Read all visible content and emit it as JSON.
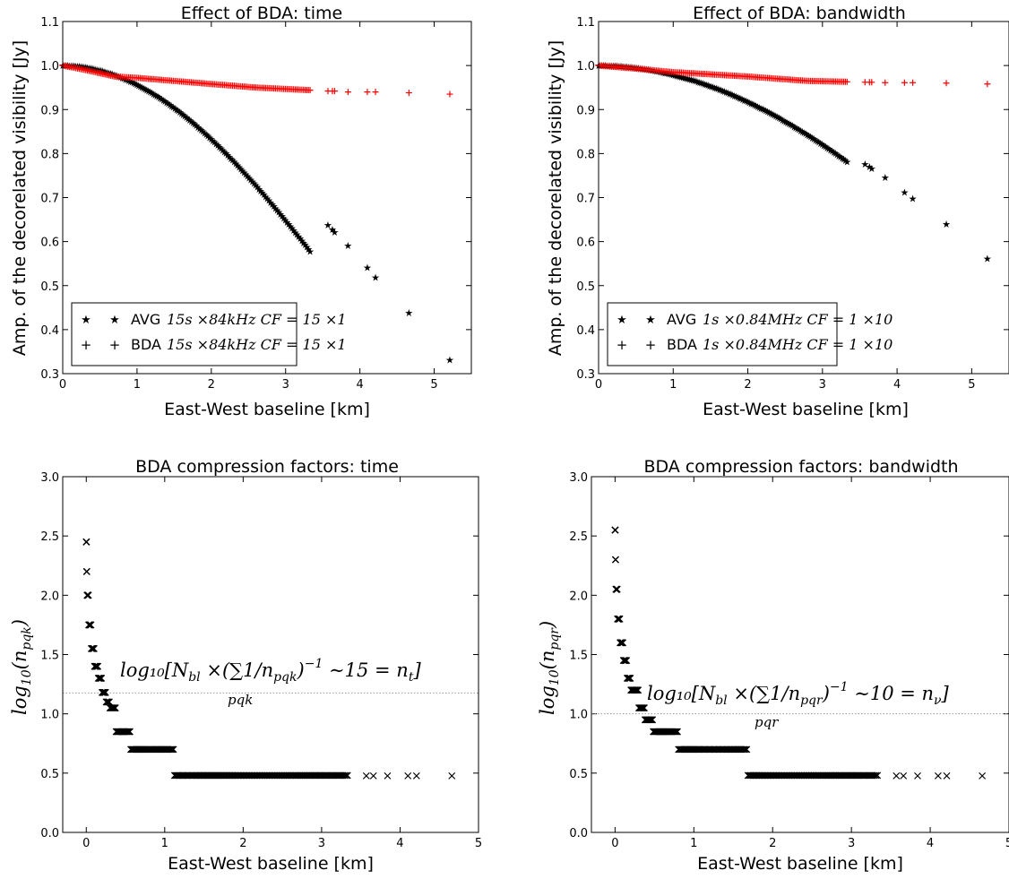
{
  "figure": {
    "panels": [
      {
        "id": "time",
        "title": "Effect of BDA: time",
        "xlabel": "East-West baseline [km]",
        "ylabel": "Amp. of the decorelated visibility [Jy]",
        "xticks": [
          "0",
          "1",
          "2",
          "3",
          "4",
          "5"
        ],
        "yticks": [
          "0.3",
          "0.4",
          "0.5",
          "0.6",
          "0.7",
          "0.8",
          "0.9",
          "1.0",
          "1.1"
        ],
        "legend": [
          {
            "label": "AVG",
            "math": "15s ×84kHz CF = 15 ×1",
            "marker": "star"
          },
          {
            "label": "BDA",
            "math": "15s ×84kHz CF = 15 ×1",
            "marker": "plus"
          }
        ]
      },
      {
        "id": "bandwidth",
        "title": "Effect of BDA: bandwidth",
        "xlabel": "East-West baseline [km]",
        "ylabel": "Amp. of the decorelated visibility [Jy]",
        "xticks": [
          "0",
          "1",
          "2",
          "3",
          "4",
          "5"
        ],
        "yticks": [
          "0.3",
          "0.4",
          "0.5",
          "0.6",
          "0.7",
          "0.8",
          "0.9",
          "1.0",
          "1.1"
        ],
        "legend": [
          {
            "label": "AVG",
            "math": "1s ×0.84MHz CF = 1 ×10",
            "marker": "star"
          },
          {
            "label": "BDA",
            "math": "1s ×0.84MHz CF = 1 ×10",
            "marker": "plus"
          }
        ]
      },
      {
        "id": "cf-time",
        "title": "BDA  compression factors: time",
        "xlabel": "East-West baseline [km]",
        "ylabel_base": "log",
        "ylabel_sub": "10",
        "ylabel_arg": "(n",
        "ylabel_arg_sub": "pqk",
        "ylabel_close": ")",
        "xticks": [
          "0",
          "1",
          "2",
          "3",
          "4",
          "5"
        ],
        "yticks": [
          "0.0",
          "0.5",
          "1.0",
          "1.5",
          "2.0",
          "2.5",
          "3.0"
        ],
        "annotation_main": "log₁₀[N",
        "annotation_parts": [
          "bl",
          " ×(∑1/n",
          "pqk",
          ")",
          "−1",
          " ∼15 = n",
          "t",
          "]"
        ],
        "annotation_under": "pqk"
      },
      {
        "id": "cf-bandwidth",
        "title": "BDA  compression factors: bandwidth",
        "xlabel": "East-West baseline [km]",
        "ylabel_base": "log",
        "ylabel_sub": "10",
        "ylabel_arg": "(n",
        "ylabel_arg_sub": "pqr",
        "ylabel_close": ")",
        "xticks": [
          "0",
          "1",
          "2",
          "3",
          "4",
          "5"
        ],
        "yticks": [
          "0.0",
          "0.5",
          "1.0",
          "1.5",
          "2.0",
          "2.5",
          "3.0"
        ],
        "annotation_main": "log₁₀[N",
        "annotation_parts": [
          "bl",
          " ×(∑1/n",
          "pqr",
          ")",
          "−1",
          " ∼10 = n",
          "ν",
          "]"
        ],
        "annotation_under": "pqr"
      }
    ],
    "colors": {
      "avg": "#000000",
      "avg_fill": "#b8b600",
      "bda": "#ff0000",
      "ref_line": "#999999"
    }
  },
  "chart_data": [
    {
      "type": "scatter",
      "title": "Effect of BDA: time",
      "xlabel": "East-West baseline [km]",
      "ylabel": "Amp. of the decorelated visibility [Jy]",
      "xlim": [
        0,
        5.5
      ],
      "ylim": [
        0.3,
        1.1
      ],
      "series": [
        {
          "name": "AVG 15s ×84kHz CF = 15 ×1",
          "marker": "star",
          "dense_curve": {
            "from": 0,
            "to": 3.33,
            "formula": "sinc",
            "k": 0.54
          },
          "points": [
            [
              3.57,
              0.638
            ],
            [
              3.63,
              0.628
            ],
            [
              3.66,
              0.622
            ],
            [
              3.84,
              0.591
            ],
            [
              4.1,
              0.541
            ],
            [
              4.21,
              0.519
            ],
            [
              4.66,
              0.438
            ],
            [
              5.21,
              0.332
            ]
          ]
        },
        {
          "name": "BDA 15s ×84kHz CF = 15 ×1",
          "marker": "plus",
          "dense_curve": {
            "from": 0,
            "to": 3.33,
            "formula": "piecewise",
            "knots": [
              [
                0,
                1.0
              ],
              [
                0.3,
                0.99
              ],
              [
                0.7,
                0.975
              ],
              [
                1.0,
                0.972
              ],
              [
                2.0,
                0.958
              ],
              [
                2.6,
                0.95
              ],
              [
                3.33,
                0.944
              ]
            ]
          },
          "points": [
            [
              3.57,
              0.942
            ],
            [
              3.63,
              0.942
            ],
            [
              3.66,
              0.942
            ],
            [
              3.84,
              0.94
            ],
            [
              4.1,
              0.94
            ],
            [
              4.21,
              0.94
            ],
            [
              4.66,
              0.938
            ],
            [
              5.21,
              0.935
            ]
          ]
        }
      ]
    },
    {
      "type": "scatter",
      "title": "Effect of BDA: bandwidth",
      "xlabel": "East-West baseline [km]",
      "ylabel": "Amp. of the decorelated visibility [Jy]",
      "xlim": [
        0,
        5.5
      ],
      "ylim": [
        0.3,
        1.1
      ],
      "series": [
        {
          "name": "AVG 1s ×0.84MHz CF = 1 ×10",
          "marker": "star",
          "dense_curve": {
            "from": 0,
            "to": 3.33,
            "formula": "sinc",
            "k": 0.374
          },
          "points": [
            [
              3.57,
              0.776
            ],
            [
              3.63,
              0.77
            ],
            [
              3.66,
              0.766
            ],
            [
              3.84,
              0.746
            ],
            [
              4.1,
              0.712
            ],
            [
              4.21,
              0.698
            ],
            [
              4.66,
              0.64
            ],
            [
              5.21,
              0.562
            ]
          ]
        },
        {
          "name": "BDA 1s ×0.84MHz CF = 1 ×10",
          "marker": "plus",
          "dense_curve": {
            "from": 0,
            "to": 3.33,
            "formula": "piecewise",
            "knots": [
              [
                0,
                1.0
              ],
              [
                0.5,
                0.993
              ],
              [
                1.0,
                0.985
              ],
              [
                2.0,
                0.975
              ],
              [
                2.8,
                0.965
              ],
              [
                3.33,
                0.963
              ]
            ]
          },
          "points": [
            [
              3.57,
              0.962
            ],
            [
              3.63,
              0.962
            ],
            [
              3.66,
              0.962
            ],
            [
              3.84,
              0.961
            ],
            [
              4.1,
              0.961
            ],
            [
              4.21,
              0.961
            ],
            [
              4.66,
              0.96
            ],
            [
              5.21,
              0.958
            ]
          ]
        }
      ]
    },
    {
      "type": "scatter",
      "title": "BDA  compression factors: time",
      "xlabel": "East-West baseline [km]",
      "xlim": [
        -0.3,
        5
      ],
      "ylim": [
        0,
        3
      ],
      "reference_line_y": 1.176,
      "series": [
        {
          "marker": "x",
          "dense_curve": {
            "from": 0,
            "to": 3.33,
            "formula": "steps",
            "knots": [
              [
                0.001,
                2.45
              ],
              [
                0.004,
                2.2
              ],
              [
                0.01,
                2.0
              ],
              [
                0.03,
                1.75
              ],
              [
                0.06,
                1.55
              ],
              [
                0.1,
                1.4
              ],
              [
                0.15,
                1.3
              ],
              [
                0.2,
                1.18
              ],
              [
                0.25,
                1.1
              ],
              [
                0.3,
                1.05
              ],
              [
                0.38,
                0.85
              ],
              [
                0.56,
                0.7
              ],
              [
                1.12,
                0.48
              ],
              [
                3.33,
                0.48
              ]
            ]
          },
          "points": [
            [
              3.57,
              0.477
            ],
            [
              3.66,
              0.477
            ],
            [
              3.84,
              0.477
            ],
            [
              4.1,
              0.477
            ],
            [
              4.21,
              0.477
            ],
            [
              4.66,
              0.477
            ]
          ]
        }
      ]
    },
    {
      "type": "scatter",
      "title": "BDA  compression factors: bandwidth",
      "xlabel": "East-West baseline [km]",
      "xlim": [
        -0.3,
        5
      ],
      "ylim": [
        0,
        3
      ],
      "reference_line_y": 1.0,
      "series": [
        {
          "marker": "x",
          "dense_curve": {
            "from": 0,
            "to": 3.33,
            "formula": "steps",
            "knots": [
              [
                0.001,
                2.55
              ],
              [
                0.004,
                2.3
              ],
              [
                0.01,
                2.05
              ],
              [
                0.03,
                1.8
              ],
              [
                0.06,
                1.6
              ],
              [
                0.1,
                1.45
              ],
              [
                0.15,
                1.3
              ],
              [
                0.2,
                1.2
              ],
              [
                0.3,
                1.05
              ],
              [
                0.38,
                0.95
              ],
              [
                0.48,
                0.85
              ],
              [
                0.8,
                0.7
              ],
              [
                1.68,
                0.48
              ],
              [
                3.33,
                0.48
              ]
            ]
          },
          "points": [
            [
              3.57,
              0.477
            ],
            [
              3.66,
              0.477
            ],
            [
              3.84,
              0.477
            ],
            [
              4.1,
              0.477
            ],
            [
              4.21,
              0.477
            ],
            [
              4.66,
              0.477
            ]
          ]
        }
      ]
    }
  ]
}
